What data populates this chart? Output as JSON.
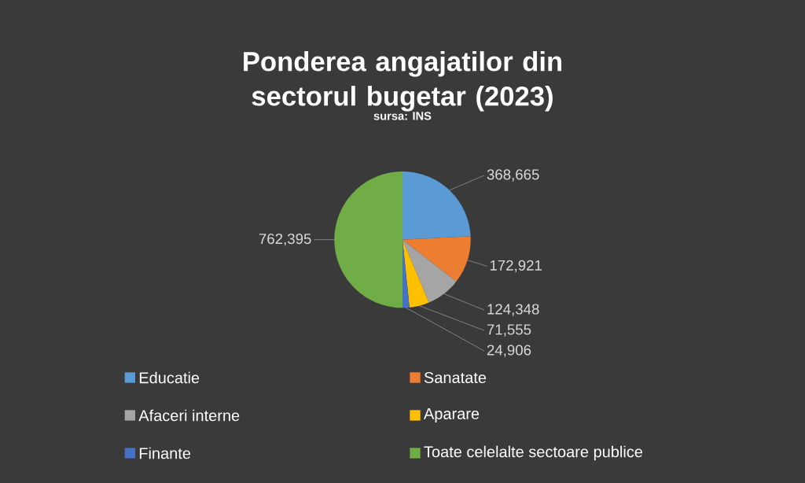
{
  "chart_data": {
    "type": "pie",
    "title": "Ponderea angajatilor din sectorul bugetar (2023)",
    "subtitle": "sursa: INS",
    "categories": [
      "Educatie",
      "Sanatate",
      "Afaceri interne",
      "Aparare",
      "Finante",
      "Toate celelalte sectoare publice"
    ],
    "values": [
      368665,
      172921,
      124348,
      71555,
      24906,
      762395
    ],
    "value_labels": [
      "368,665",
      "172,921",
      "124,348",
      "71,555",
      "24,906",
      "762,395"
    ],
    "colors": [
      "#5b9bd5",
      "#ed7d31",
      "#a5a5a5",
      "#ffc000",
      "#4472c4",
      "#70ad47"
    ],
    "legend": "bottom"
  }
}
